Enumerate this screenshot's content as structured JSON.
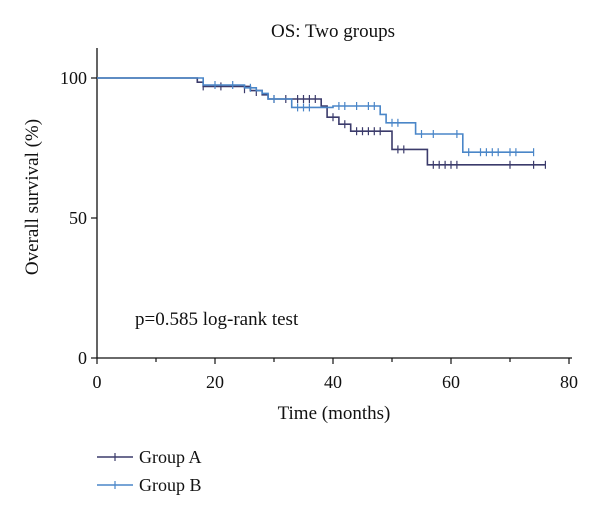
{
  "chart_data": {
    "type": "line",
    "subtype": "kaplan-meier",
    "title": "OS: Two groups",
    "xlabel": "Time (months)",
    "ylabel": "Overall survival (%)",
    "xlim": [
      0,
      80
    ],
    "ylim": [
      0,
      100
    ],
    "xticks": [
      0,
      20,
      40,
      60,
      80
    ],
    "yticks": [
      0,
      50,
      100
    ],
    "grid": false,
    "legend_position": "bottom-left",
    "annotation": "p=0.585 log-rank test",
    "series": [
      {
        "name": "Group A",
        "color": "#3b3b6b",
        "steps": [
          [
            0,
            100
          ],
          [
            17,
            98.5
          ],
          [
            18,
            97
          ],
          [
            26,
            95.5
          ],
          [
            28,
            94
          ],
          [
            29,
            92.5
          ],
          [
            38,
            90
          ],
          [
            39,
            86
          ],
          [
            41,
            83.5
          ],
          [
            43,
            81
          ],
          [
            50,
            74.5
          ],
          [
            56,
            69
          ],
          [
            76,
            69
          ]
        ],
        "censored": [
          [
            18,
            97
          ],
          [
            21,
            97
          ],
          [
            25,
            96
          ],
          [
            27,
            95
          ],
          [
            30,
            92.5
          ],
          [
            32,
            92.5
          ],
          [
            34,
            92.5
          ],
          [
            35,
            92.5
          ],
          [
            36,
            92.5
          ],
          [
            37,
            92.5
          ],
          [
            40,
            86
          ],
          [
            42,
            83.5
          ],
          [
            44,
            81
          ],
          [
            45,
            81
          ],
          [
            46,
            81
          ],
          [
            47,
            81
          ],
          [
            48,
            81
          ],
          [
            51,
            74.5
          ],
          [
            52,
            74.5
          ],
          [
            57,
            69
          ],
          [
            58,
            69
          ],
          [
            59,
            69
          ],
          [
            60,
            69
          ],
          [
            61,
            69
          ],
          [
            70,
            69
          ],
          [
            74,
            69
          ],
          [
            76,
            69
          ]
        ]
      },
      {
        "name": "Group B",
        "color": "#4a86c8",
        "steps": [
          [
            0,
            100
          ],
          [
            18,
            97.5
          ],
          [
            25,
            96.5
          ],
          [
            27,
            95.5
          ],
          [
            28,
            94.5
          ],
          [
            29,
            92.5
          ],
          [
            33,
            89.5
          ],
          [
            39,
            89.5
          ],
          [
            40,
            90
          ],
          [
            48,
            87
          ],
          [
            49,
            84
          ],
          [
            54,
            80
          ],
          [
            62,
            73.5
          ],
          [
            74,
            73.5
          ]
        ],
        "censored": [
          [
            20,
            97.5
          ],
          [
            23,
            97.5
          ],
          [
            26,
            96.5
          ],
          [
            30,
            92.5
          ],
          [
            34,
            89.5
          ],
          [
            35,
            89.5
          ],
          [
            36,
            89.5
          ],
          [
            41,
            90
          ],
          [
            42,
            90
          ],
          [
            44,
            90
          ],
          [
            46,
            90
          ],
          [
            47,
            90
          ],
          [
            50,
            84
          ],
          [
            51,
            84
          ],
          [
            55,
            80
          ],
          [
            57,
            80
          ],
          [
            61,
            80
          ],
          [
            63,
            73.5
          ],
          [
            65,
            73.5
          ],
          [
            66,
            73.5
          ],
          [
            67,
            73.5
          ],
          [
            68,
            73.5
          ],
          [
            70,
            73.5
          ],
          [
            71,
            73.5
          ],
          [
            74,
            73.5
          ]
        ]
      }
    ]
  }
}
